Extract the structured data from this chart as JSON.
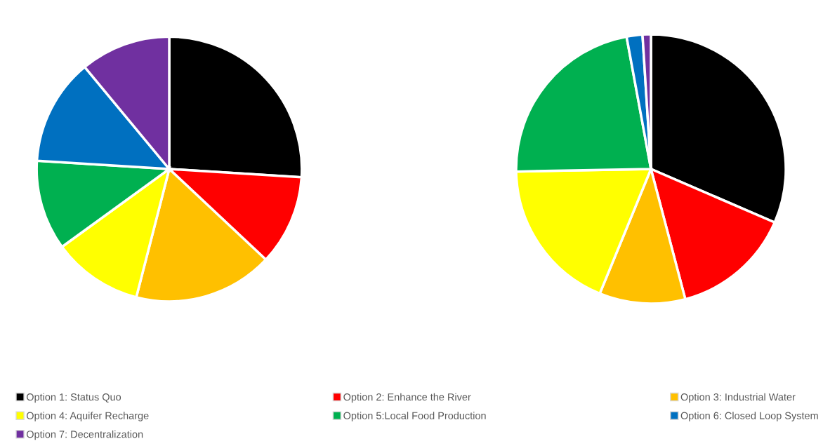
{
  "chart_data": [
    {
      "type": "pie",
      "categories": [
        "Option 1: Status Quo",
        "Option 2: Enhance the River",
        "Option 3: Industrial Water",
        "Option 4: Aquifer Recharge",
        "Option 5:Local Food Production",
        "Option 6: Closed Loop System",
        "Option 7: Decentralization"
      ],
      "values": [
        26,
        11,
        17,
        11,
        11,
        13,
        11
      ],
      "colors": [
        "#000000",
        "#ff0000",
        "#ffc000",
        "#ffff00",
        "#00b050",
        "#0070c0",
        "#7030a0"
      ],
      "legend": "bottom"
    },
    {
      "type": "pie",
      "categories": [
        null,
        null,
        null,
        null,
        null,
        null,
        null
      ],
      "values": [
        31.5,
        14.4,
        10.3,
        18.5,
        22.4,
        1.9,
        1.0
      ],
      "colors": [
        "#000000",
        "#ff0000",
        "#ffc000",
        "#ffff00",
        "#00b050",
        "#0070c0",
        "#7030a0"
      ]
    }
  ]
}
